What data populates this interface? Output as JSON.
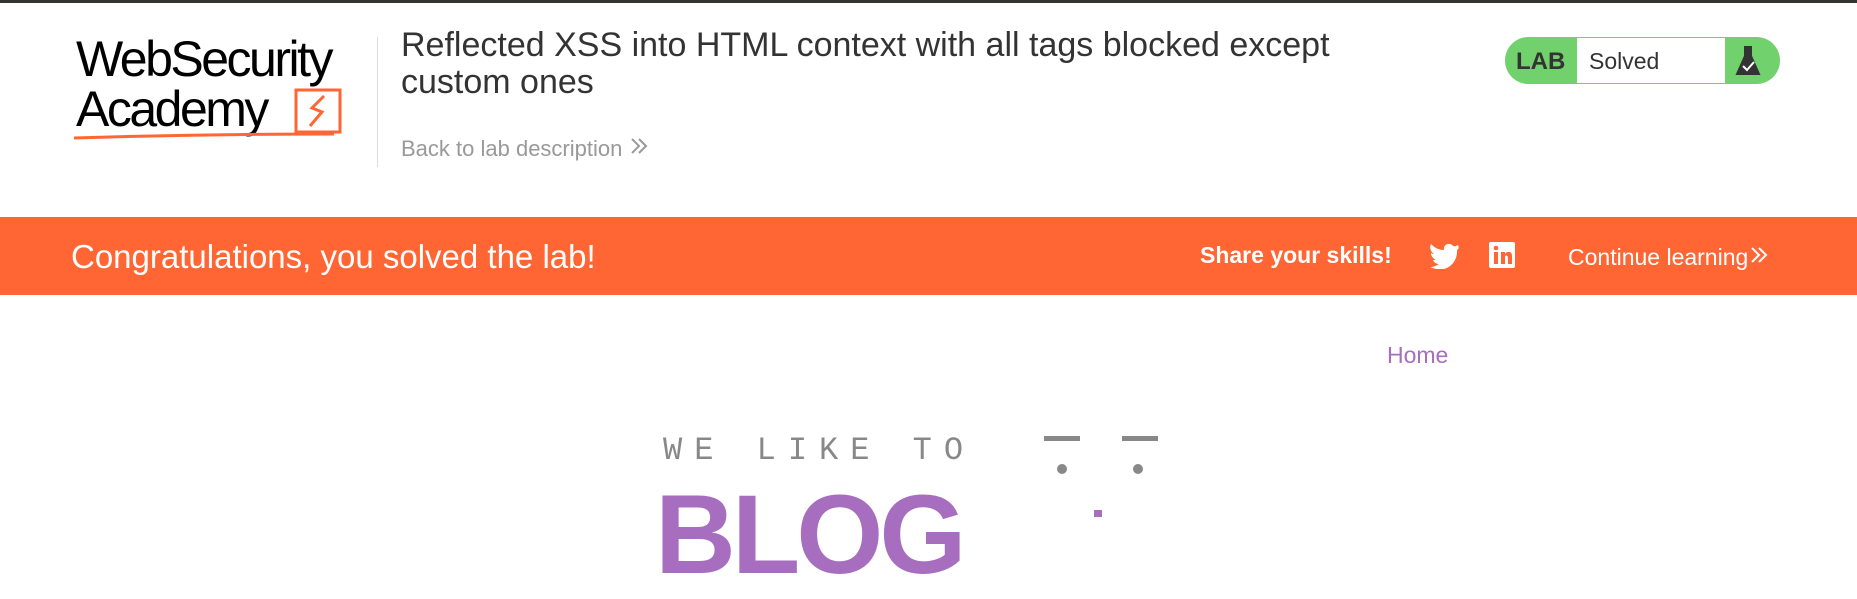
{
  "header": {
    "logo": [
      "WebSecurity",
      "Academy"
    ],
    "title": "Reflected XSS into HTML context with all tags blocked except custom ones",
    "back_link": "Back to lab description",
    "badge": {
      "label": "LAB",
      "status": "Solved"
    }
  },
  "banner": {
    "message": "Congratulations, you solved the lab!",
    "share": "Share your skills!",
    "continue": "Continue learning"
  },
  "nav": {
    "home": "Home"
  },
  "hero": {
    "tagline": "WE LIKE TO",
    "word": "BLOG"
  }
}
